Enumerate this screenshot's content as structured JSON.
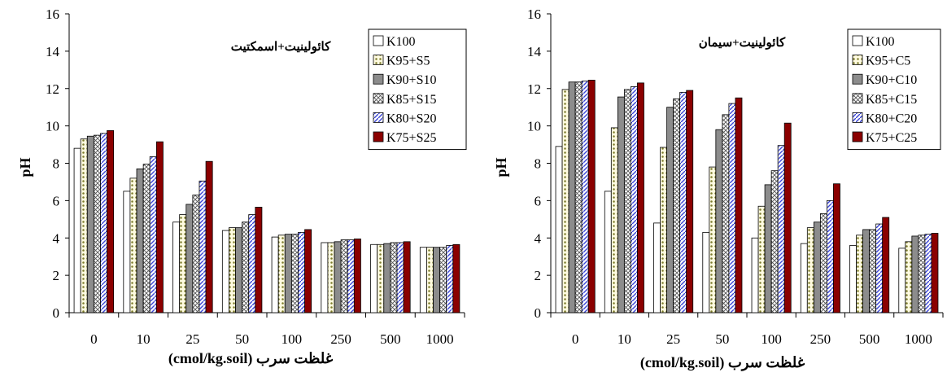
{
  "chart_data": [
    {
      "type": "bar",
      "annotation": "کائولینیت+اسمکتیت",
      "xlabel": "(cmol/kg.soil) غلظت سرب",
      "ylabel": "pH",
      "ylim": [
        0,
        16
      ],
      "yticks": [
        0,
        2,
        4,
        6,
        8,
        10,
        12,
        14,
        16
      ],
      "categories": [
        "0",
        "10",
        "25",
        "50",
        "100",
        "250",
        "500",
        "1000"
      ],
      "legend_placement": "top-right",
      "series": [
        {
          "name": "K100",
          "pattern": "white",
          "values": [
            8.8,
            6.5,
            4.85,
            4.4,
            4.05,
            3.75,
            3.65,
            3.5
          ]
        },
        {
          "name": "K95+S5",
          "pattern": "dots",
          "values": [
            9.3,
            7.2,
            5.25,
            4.55,
            4.15,
            3.75,
            3.65,
            3.5
          ]
        },
        {
          "name": "K90+S10",
          "pattern": "gray",
          "values": [
            9.45,
            7.7,
            5.8,
            4.55,
            4.2,
            3.8,
            3.7,
            3.5
          ]
        },
        {
          "name": "K85+S15",
          "pattern": "cross",
          "values": [
            9.5,
            7.95,
            6.3,
            4.85,
            4.2,
            3.9,
            3.75,
            3.5
          ]
        },
        {
          "name": "K80+S20",
          "pattern": "diag",
          "values": [
            9.6,
            8.35,
            7.05,
            5.25,
            4.3,
            3.9,
            3.75,
            3.6
          ]
        },
        {
          "name": "K75+S25",
          "pattern": "darkred",
          "values": [
            9.75,
            9.15,
            8.1,
            5.65,
            4.45,
            3.95,
            3.8,
            3.65
          ]
        }
      ]
    },
    {
      "type": "bar",
      "annotation": "کائولینیت+سیمان",
      "xlabel": "(cmol/kg.soil) غلظت سرب",
      "ylabel": "pH",
      "ylim": [
        0,
        16
      ],
      "yticks": [
        0,
        2,
        4,
        6,
        8,
        10,
        12,
        14,
        16
      ],
      "categories": [
        "0",
        "10",
        "25",
        "50",
        "100",
        "250",
        "500",
        "1000"
      ],
      "legend_placement": "top-right",
      "series": [
        {
          "name": "K100",
          "pattern": "white",
          "values": [
            8.9,
            6.5,
            4.8,
            4.3,
            4.0,
            3.7,
            3.6,
            3.45
          ]
        },
        {
          "name": "K95+C5",
          "pattern": "dots",
          "values": [
            11.95,
            9.9,
            8.85,
            7.8,
            5.7,
            4.55,
            4.15,
            3.8
          ]
        },
        {
          "name": "K90+C10",
          "pattern": "gray",
          "values": [
            12.35,
            11.55,
            11.0,
            9.8,
            6.85,
            4.85,
            4.45,
            4.1
          ]
        },
        {
          "name": "K85+C15",
          "pattern": "cross",
          "values": [
            12.35,
            11.95,
            11.45,
            10.6,
            7.6,
            5.3,
            4.45,
            4.15
          ]
        },
        {
          "name": "K80+C20",
          "pattern": "diag",
          "values": [
            12.4,
            12.1,
            11.8,
            11.2,
            8.95,
            6.0,
            4.75,
            4.2
          ]
        },
        {
          "name": "K75+C25",
          "pattern": "darkred",
          "values": [
            12.45,
            12.3,
            11.9,
            11.5,
            10.15,
            6.9,
            5.1,
            4.25
          ]
        }
      ]
    }
  ]
}
